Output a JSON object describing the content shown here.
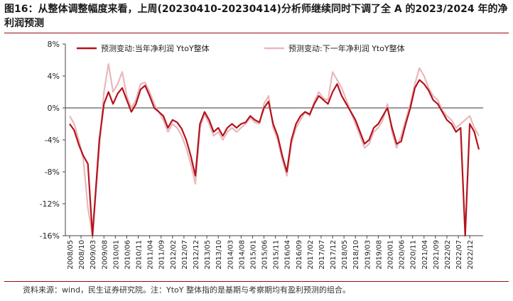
{
  "figure": {
    "title": "图16：从整体调整幅度来看，上周(20230410-20230414)分析师继续同时下调了全 A 的2023/2024 年的净利润预测",
    "note": "资料来源：wind，民生证券研究院。注：YtoY 整体指的是基期与考察期均有盈利预测的组合。"
  },
  "chart_data": {
    "type": "line",
    "title": "",
    "xlabel": "",
    "ylabel": "",
    "y_unit": "%",
    "ylim": [
      -16,
      8
    ],
    "yticks": [
      -16,
      -12,
      -8,
      -4,
      0,
      4,
      8
    ],
    "ytick_labels": [
      "-16%",
      "-12%",
      "-8%",
      "-4%",
      "0%",
      "4%",
      "8%"
    ],
    "x_ticks": [
      "2008/05",
      "2008/10",
      "2009/03",
      "2009/08",
      "2010/01",
      "2010/06",
      "2010/11",
      "2011/04",
      "2011/09",
      "2012/02",
      "2012/07",
      "2012/12",
      "2013/05",
      "2013/10",
      "2014/03",
      "2014/08",
      "2015/01",
      "2015/06",
      "2015/11",
      "2016/04",
      "2016/09",
      "2017/02",
      "2017/07",
      "2017/12",
      "2018/05",
      "2018/10",
      "2019/03",
      "2019/08",
      "2020/01",
      "2020/06",
      "2020/11",
      "2021/04",
      "2021/09",
      "2022/02",
      "2022/07",
      "2022/12"
    ],
    "grid": false,
    "legend_position": "top",
    "series": [
      {
        "name": "预测变动:当年净利润 YtoY整体",
        "color": "#b5121b",
        "points": [
          [
            "2008/05",
            -2.0
          ],
          [
            "2008/07",
            -2.8
          ],
          [
            "2008/09",
            -4.6
          ],
          [
            "2008/11",
            -6.0
          ],
          [
            "2009/01",
            -7.0
          ],
          [
            "2009/03",
            -16.0
          ],
          [
            "2009/06",
            -4.0
          ],
          [
            "2009/08",
            0.5
          ],
          [
            "2009/10",
            2.0
          ],
          [
            "2009/12",
            0.5
          ],
          [
            "2010/02",
            1.8
          ],
          [
            "2010/04",
            2.5
          ],
          [
            "2010/06",
            1.0
          ],
          [
            "2010/08",
            -0.5
          ],
          [
            "2010/10",
            0.5
          ],
          [
            "2010/12",
            2.3
          ],
          [
            "2011/02",
            2.8
          ],
          [
            "2011/04",
            1.5
          ],
          [
            "2011/06",
            0.0
          ],
          [
            "2011/08",
            -0.5
          ],
          [
            "2011/10",
            -1.0
          ],
          [
            "2011/12",
            -2.5
          ],
          [
            "2012/02",
            -1.5
          ],
          [
            "2012/04",
            -1.8
          ],
          [
            "2012/06",
            -2.6
          ],
          [
            "2012/08",
            -4.0
          ],
          [
            "2012/10",
            -6.0
          ],
          [
            "2012/12",
            -8.5
          ],
          [
            "2013/02",
            -2.0
          ],
          [
            "2013/04",
            -0.5
          ],
          [
            "2013/06",
            -1.5
          ],
          [
            "2013/08",
            -3.0
          ],
          [
            "2013/10",
            -2.5
          ],
          [
            "2013/12",
            -3.5
          ],
          [
            "2014/02",
            -2.5
          ],
          [
            "2014/04",
            -2.0
          ],
          [
            "2014/06",
            -2.5
          ],
          [
            "2014/08",
            -2.0
          ],
          [
            "2014/10",
            -1.8
          ],
          [
            "2014/12",
            -1.0
          ],
          [
            "2015/02",
            -1.5
          ],
          [
            "2015/04",
            -1.8
          ],
          [
            "2015/06",
            0.0
          ],
          [
            "2015/08",
            0.8
          ],
          [
            "2015/10",
            -2.0
          ],
          [
            "2015/12",
            -3.5
          ],
          [
            "2016/02",
            -6.0
          ],
          [
            "2016/04",
            -8.0
          ],
          [
            "2016/06",
            -4.0
          ],
          [
            "2016/08",
            -2.0
          ],
          [
            "2016/10",
            -1.0
          ],
          [
            "2016/12",
            -0.5
          ],
          [
            "2017/02",
            -0.8
          ],
          [
            "2017/04",
            0.5
          ],
          [
            "2017/06",
            1.5
          ],
          [
            "2017/08",
            1.0
          ],
          [
            "2017/10",
            0.5
          ],
          [
            "2017/12",
            2.0
          ],
          [
            "2018/02",
            3.0
          ],
          [
            "2018/04",
            1.5
          ],
          [
            "2018/06",
            0.5
          ],
          [
            "2018/08",
            -0.5
          ],
          [
            "2018/10",
            -1.5
          ],
          [
            "2018/12",
            -3.0
          ],
          [
            "2019/02",
            -4.5
          ],
          [
            "2019/04",
            -4.0
          ],
          [
            "2019/06",
            -2.5
          ],
          [
            "2019/08",
            -2.0
          ],
          [
            "2019/10",
            -1.0
          ],
          [
            "2019/12",
            0.0
          ],
          [
            "2020/02",
            -2.5
          ],
          [
            "2020/04",
            -4.5
          ],
          [
            "2020/06",
            -4.2
          ],
          [
            "2020/08",
            -2.0
          ],
          [
            "2020/10",
            0.0
          ],
          [
            "2020/12",
            2.5
          ],
          [
            "2021/02",
            3.5
          ],
          [
            "2021/04",
            3.0
          ],
          [
            "2021/06",
            2.2
          ],
          [
            "2021/08",
            1.0
          ],
          [
            "2021/10",
            0.5
          ],
          [
            "2021/12",
            -0.5
          ],
          [
            "2022/02",
            -1.5
          ],
          [
            "2022/04",
            -2.0
          ],
          [
            "2022/06",
            -3.0
          ],
          [
            "2022/08",
            -2.5
          ],
          [
            "2022/10",
            -16.0
          ],
          [
            "2022/12",
            -2.0
          ],
          [
            "2023/02",
            -3.0
          ],
          [
            "2023/04",
            -5.2
          ]
        ]
      },
      {
        "name": "预测变动:下一年净利润 YtoY整体",
        "color": "#e8b8bc",
        "points": [
          [
            "2008/05",
            -1.0
          ],
          [
            "2008/07",
            -2.0
          ],
          [
            "2008/09",
            -4.0
          ],
          [
            "2008/11",
            -6.5
          ],
          [
            "2009/01",
            -12.5
          ],
          [
            "2009/03",
            -16.0
          ],
          [
            "2009/06",
            -5.0
          ],
          [
            "2009/08",
            2.0
          ],
          [
            "2009/10",
            5.5
          ],
          [
            "2009/12",
            2.0
          ],
          [
            "2010/02",
            3.0
          ],
          [
            "2010/04",
            4.5
          ],
          [
            "2010/06",
            1.5
          ],
          [
            "2010/08",
            0.0
          ],
          [
            "2010/10",
            1.0
          ],
          [
            "2010/12",
            3.0
          ],
          [
            "2011/02",
            3.2
          ],
          [
            "2011/04",
            2.0
          ],
          [
            "2011/06",
            0.5
          ],
          [
            "2011/08",
            -0.5
          ],
          [
            "2011/10",
            -1.5
          ],
          [
            "2011/12",
            -3.0
          ],
          [
            "2012/02",
            -2.0
          ],
          [
            "2012/04",
            -2.5
          ],
          [
            "2012/06",
            -3.5
          ],
          [
            "2012/08",
            -5.0
          ],
          [
            "2012/10",
            -7.0
          ],
          [
            "2012/12",
            -9.5
          ],
          [
            "2013/02",
            -2.5
          ],
          [
            "2013/04",
            -0.8
          ],
          [
            "2013/06",
            -2.0
          ],
          [
            "2013/08",
            -3.5
          ],
          [
            "2013/10",
            -3.0
          ],
          [
            "2013/12",
            -4.0
          ],
          [
            "2014/02",
            -3.0
          ],
          [
            "2014/04",
            -2.5
          ],
          [
            "2014/06",
            -3.0
          ],
          [
            "2014/08",
            -2.5
          ],
          [
            "2014/10",
            -2.0
          ],
          [
            "2014/12",
            -1.2
          ],
          [
            "2015/02",
            -1.8
          ],
          [
            "2015/04",
            -2.0
          ],
          [
            "2015/06",
            0.5
          ],
          [
            "2015/08",
            1.5
          ],
          [
            "2015/10",
            -2.5
          ],
          [
            "2015/12",
            -4.0
          ],
          [
            "2016/02",
            -6.5
          ],
          [
            "2016/04",
            -8.5
          ],
          [
            "2016/06",
            -4.5
          ],
          [
            "2016/08",
            -2.5
          ],
          [
            "2016/10",
            -1.5
          ],
          [
            "2016/12",
            -0.5
          ],
          [
            "2017/02",
            -1.0
          ],
          [
            "2017/04",
            0.8
          ],
          [
            "2017/06",
            2.0
          ],
          [
            "2017/08",
            1.2
          ],
          [
            "2017/10",
            1.0
          ],
          [
            "2017/12",
            4.5
          ],
          [
            "2018/02",
            3.5
          ],
          [
            "2018/04",
            2.5
          ],
          [
            "2018/06",
            1.0
          ],
          [
            "2018/08",
            -0.5
          ],
          [
            "2018/10",
            -2.0
          ],
          [
            "2018/12",
            -3.5
          ],
          [
            "2019/02",
            -5.0
          ],
          [
            "2019/04",
            -4.5
          ],
          [
            "2019/06",
            -3.0
          ],
          [
            "2019/08",
            -2.5
          ],
          [
            "2019/10",
            -1.5
          ],
          [
            "2019/12",
            0.5
          ],
          [
            "2020/02",
            -3.0
          ],
          [
            "2020/04",
            -5.0
          ],
          [
            "2020/06",
            -3.5
          ],
          [
            "2020/08",
            -1.5
          ],
          [
            "2020/10",
            0.5
          ],
          [
            "2020/12",
            3.0
          ],
          [
            "2021/02",
            5.0
          ],
          [
            "2021/04",
            4.0
          ],
          [
            "2021/06",
            2.5
          ],
          [
            "2021/08",
            1.5
          ],
          [
            "2021/10",
            1.0
          ],
          [
            "2021/12",
            -0.3
          ],
          [
            "2022/02",
            -1.0
          ],
          [
            "2022/04",
            -1.5
          ],
          [
            "2022/06",
            -2.5
          ],
          [
            "2022/08",
            -2.0
          ],
          [
            "2022/10",
            -1.5
          ],
          [
            "2022/12",
            -1.0
          ],
          [
            "2023/02",
            -2.5
          ],
          [
            "2023/04",
            -3.5
          ]
        ]
      }
    ]
  }
}
